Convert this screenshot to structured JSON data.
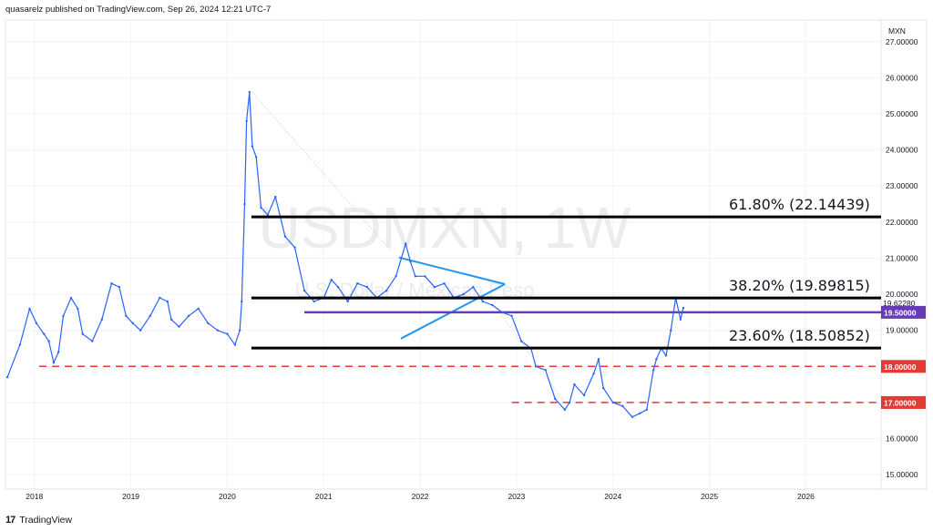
{
  "header": {
    "text": "quasarelz published on TradingView.com, Sep 26, 2024 12:21 UTC-7"
  },
  "footer": {
    "logo": "17",
    "brand": "TradingView"
  },
  "watermark": {
    "symbol": "USDMXN, 1W",
    "description": "U.S. Dollar / Mexican Peso"
  },
  "chart_data": {
    "type": "line",
    "symbol": "USDMXN",
    "interval": "1W",
    "currency_label": "MXN",
    "price_axis": {
      "labels": [
        "27.00000",
        "26.00000",
        "25.00000",
        "24.00000",
        "23.00000",
        "22.00000",
        "21.00000",
        "20.00000",
        "19.00000",
        "17.00000",
        "16.00000",
        "15.00000"
      ],
      "range": [
        14.6,
        27.6
      ]
    },
    "time_axis": {
      "labels": [
        "2018",
        "2019",
        "2020",
        "2021",
        "2022",
        "2023",
        "2024",
        "2025",
        "2026"
      ],
      "range": [
        2017.7,
        2026.78
      ]
    },
    "grid": true,
    "last_price": "19.62280",
    "series": [
      {
        "color": "#2962ff",
        "x": [
          2017.72,
          2017.85,
          2017.95,
          2018.02,
          2018.1,
          2018.15,
          2018.2,
          2018.25,
          2018.3,
          2018.38,
          2018.45,
          2018.5,
          2018.6,
          2018.7,
          2018.8,
          2018.88,
          2018.95,
          2019.02,
          2019.1,
          2019.2,
          2019.3,
          2019.38,
          2019.42,
          2019.5,
          2019.6,
          2019.7,
          2019.8,
          2019.9,
          2020.0,
          2020.08,
          2020.13,
          2020.15,
          2020.18,
          2020.2,
          2020.23,
          2020.26,
          2020.3,
          2020.35,
          2020.42,
          2020.5,
          2020.6,
          2020.7,
          2020.8,
          2020.9,
          2021.0,
          2021.08,
          2021.15,
          2021.25,
          2021.35,
          2021.45,
          2021.55,
          2021.65,
          2021.75,
          2021.85,
          2021.9,
          2021.95,
          2022.05,
          2022.15,
          2022.25,
          2022.35,
          2022.45,
          2022.55,
          2022.65,
          2022.75,
          2022.85,
          2022.95,
          2023.05,
          2023.15,
          2023.2,
          2023.3,
          2023.4,
          2023.5,
          2023.55,
          2023.6,
          2023.7,
          2023.8,
          2023.85,
          2023.9,
          2024.0,
          2024.1,
          2024.2,
          2024.28,
          2024.35,
          2024.42,
          2024.45,
          2024.5,
          2024.55,
          2024.6,
          2024.65,
          2024.7,
          2024.73
        ],
        "y": [
          17.7,
          18.6,
          19.6,
          19.2,
          18.9,
          18.7,
          18.1,
          18.4,
          19.4,
          19.9,
          19.6,
          18.9,
          18.7,
          19.3,
          20.3,
          20.2,
          19.4,
          19.2,
          19.0,
          19.4,
          19.9,
          19.8,
          19.3,
          19.1,
          19.4,
          19.6,
          19.2,
          19.0,
          18.9,
          18.6,
          19.0,
          19.8,
          22.5,
          24.8,
          25.6,
          24.1,
          23.8,
          22.4,
          22.2,
          22.7,
          21.6,
          21.3,
          20.1,
          19.8,
          19.9,
          20.4,
          20.2,
          19.8,
          20.3,
          20.2,
          19.9,
          20.1,
          20.5,
          21.4,
          20.9,
          20.5,
          20.5,
          20.2,
          20.3,
          19.9,
          20.0,
          20.2,
          19.8,
          19.7,
          19.5,
          19.4,
          18.7,
          18.5,
          18.0,
          17.9,
          17.1,
          16.8,
          17.0,
          17.5,
          17.2,
          17.8,
          18.2,
          17.4,
          17.0,
          16.9,
          16.6,
          16.7,
          16.8,
          17.9,
          18.2,
          18.5,
          18.3,
          19.0,
          19.9,
          19.3,
          19.62
        ]
      }
    ],
    "fib_levels": [
      {
        "label": "61.80% (22.14439)",
        "value": 22.14439
      },
      {
        "label": "38.20% (19.89815)",
        "value": 19.89815
      },
      {
        "label": "23.60% (18.50852)",
        "value": 18.50852
      }
    ],
    "support_levels": [
      {
        "value": 19.5,
        "label": "19.50000",
        "color": "#673ab7"
      },
      {
        "value": 18.0,
        "label": "18.00000",
        "color": "#e53935"
      },
      {
        "value": 17.0,
        "label": "17.00000",
        "color": "#e53935"
      }
    ],
    "triangle_color": "#2196f3"
  }
}
